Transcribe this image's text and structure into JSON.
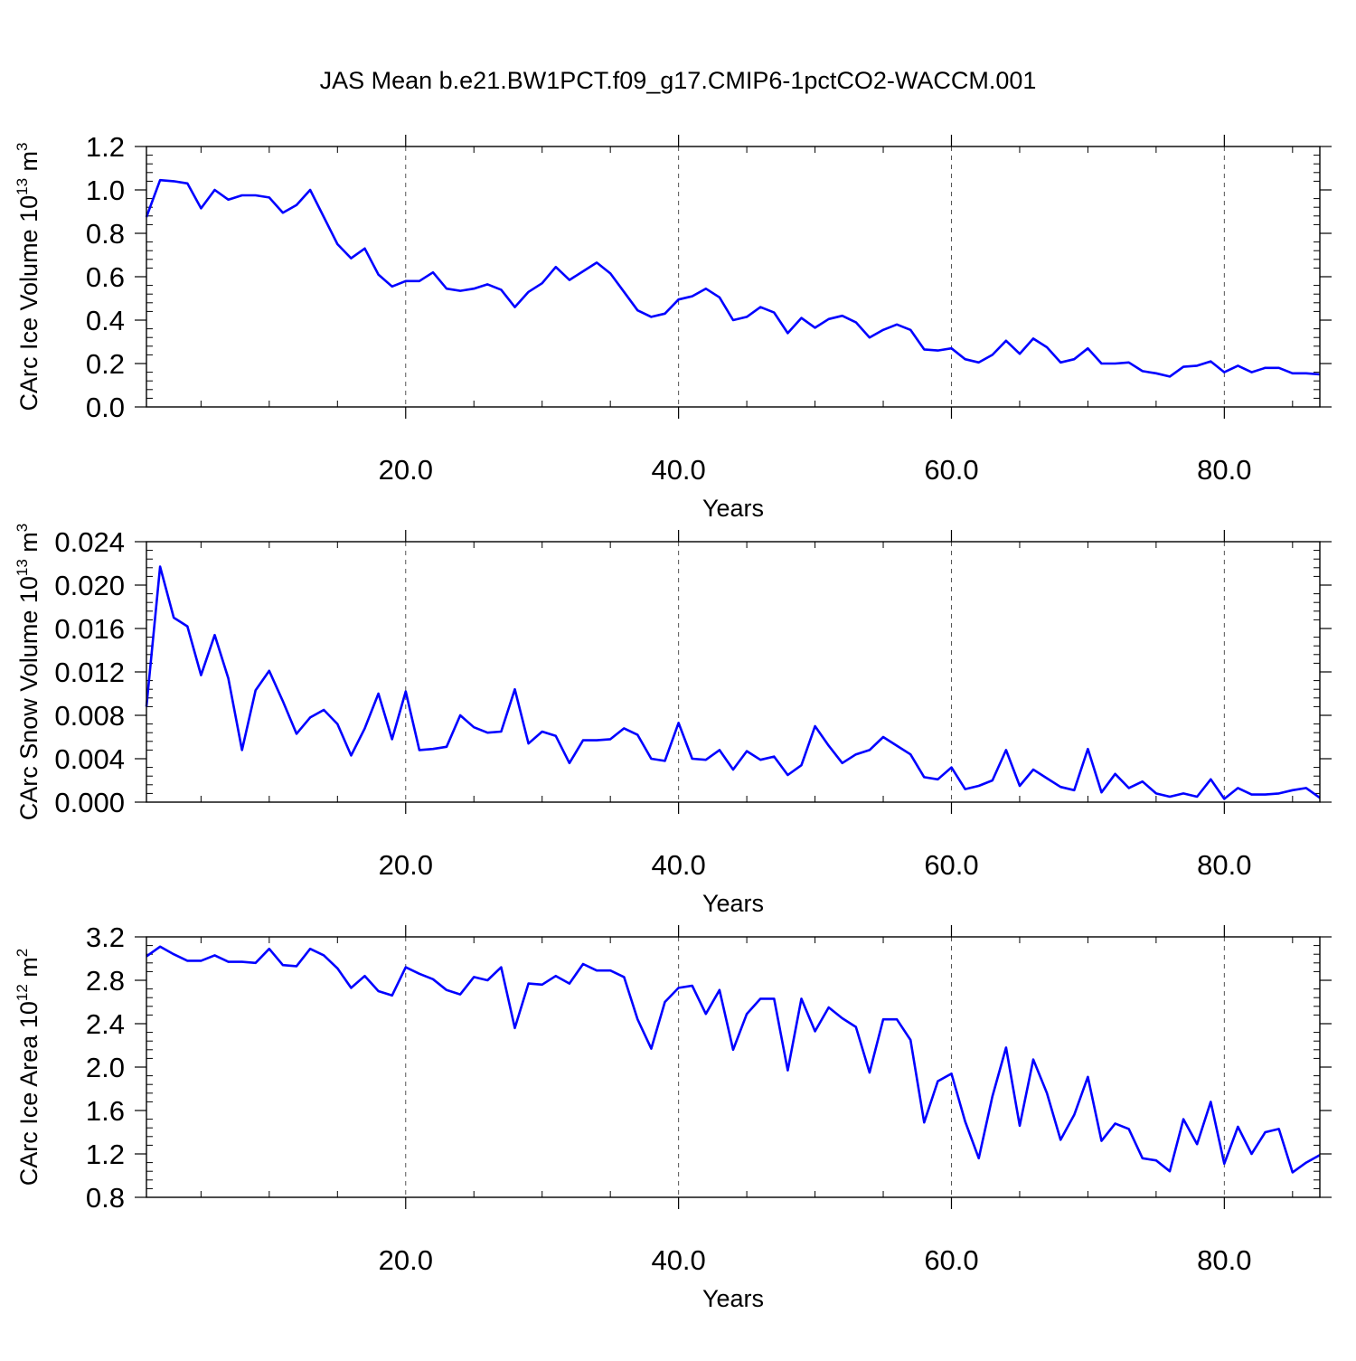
{
  "title": "JAS Mean b.e21.BW1PCT.f09_g17.CMIP6-1pctCO2-WACCM.001",
  "line_color": "#0000ff",
  "chart_data": [
    {
      "type": "line",
      "ylabel_main": "CArc Ice Volume 10",
      "ylabel_exp": "13",
      "ylabel_unit": " m",
      "ylabel_unit_exp": "3",
      "xlabel": "Years",
      "xlim": [
        1,
        87
      ],
      "ylim": [
        0.0,
        1.2
      ],
      "xticks": [
        20,
        40,
        60,
        80
      ],
      "xtick_labels": [
        "20.0",
        "40.0",
        "60.0",
        "80.0"
      ],
      "yticks": [
        0.0,
        0.2,
        0.4,
        0.6,
        0.8,
        1.0,
        1.2
      ],
      "ytick_labels": [
        "0.0",
        "0.2",
        "0.4",
        "0.6",
        "0.8",
        "1.0",
        "1.2"
      ],
      "grid": "dashed vertical at x ticks",
      "x": [
        1,
        2,
        3,
        4,
        5,
        6,
        7,
        8,
        9,
        10,
        11,
        12,
        13,
        14,
        15,
        16,
        17,
        18,
        19,
        20,
        21,
        22,
        23,
        24,
        25,
        26,
        27,
        28,
        29,
        30,
        31,
        32,
        33,
        34,
        35,
        36,
        37,
        38,
        39,
        40,
        41,
        42,
        43,
        44,
        45,
        46,
        47,
        48,
        49,
        50,
        51,
        52,
        53,
        54,
        55,
        56,
        57,
        58,
        59,
        60,
        61,
        62,
        63,
        64,
        65,
        66,
        67,
        68,
        69,
        70,
        71,
        72,
        73,
        74,
        75,
        76,
        77,
        78,
        79,
        80,
        81,
        82,
        83,
        84,
        85,
        86,
        87
      ],
      "values": [
        0.875,
        1.045,
        1.04,
        1.03,
        0.915,
        1.0,
        0.955,
        0.975,
        0.975,
        0.965,
        0.895,
        0.93,
        1.0,
        0.875,
        0.75,
        0.685,
        0.73,
        0.61,
        0.555,
        0.58,
        0.58,
        0.62,
        0.545,
        0.535,
        0.545,
        0.565,
        0.54,
        0.46,
        0.53,
        0.57,
        0.645,
        0.585,
        0.625,
        0.665,
        0.615,
        0.53,
        0.445,
        0.415,
        0.43,
        0.495,
        0.51,
        0.545,
        0.505,
        0.4,
        0.415,
        0.46,
        0.435,
        0.34,
        0.41,
        0.365,
        0.405,
        0.42,
        0.39,
        0.32,
        0.355,
        0.38,
        0.355,
        0.265,
        0.26,
        0.27,
        0.22,
        0.205,
        0.24,
        0.305,
        0.245,
        0.315,
        0.275,
        0.205,
        0.22,
        0.27,
        0.2,
        0.2,
        0.205,
        0.165,
        0.155,
        0.14,
        0.185,
        0.19,
        0.21,
        0.16,
        0.19,
        0.16,
        0.18,
        0.18,
        0.155,
        0.155,
        0.15
      ]
    },
    {
      "type": "line",
      "ylabel_main": "CArc Snow Volume 10",
      "ylabel_exp": "13",
      "ylabel_unit": " m",
      "ylabel_unit_exp": "3",
      "xlabel": "Years",
      "xlim": [
        1,
        87
      ],
      "ylim": [
        0.0,
        0.024
      ],
      "xticks": [
        20,
        40,
        60,
        80
      ],
      "xtick_labels": [
        "20.0",
        "40.0",
        "60.0",
        "80.0"
      ],
      "yticks": [
        0.0,
        0.004,
        0.008,
        0.012,
        0.016,
        0.02,
        0.024
      ],
      "ytick_labels": [
        "0.000",
        "0.004",
        "0.008",
        "0.012",
        "0.016",
        "0.020",
        "0.024"
      ],
      "grid": "dashed vertical at x ticks",
      "x": [
        1,
        2,
        3,
        4,
        5,
        6,
        7,
        8,
        9,
        10,
        11,
        12,
        13,
        14,
        15,
        16,
        17,
        18,
        19,
        20,
        21,
        22,
        23,
        24,
        25,
        26,
        27,
        28,
        29,
        30,
        31,
        32,
        33,
        34,
        35,
        36,
        37,
        38,
        39,
        40,
        41,
        42,
        43,
        44,
        45,
        46,
        47,
        48,
        49,
        50,
        51,
        52,
        53,
        54,
        55,
        56,
        57,
        58,
        59,
        60,
        61,
        62,
        63,
        64,
        65,
        66,
        67,
        68,
        69,
        70,
        71,
        72,
        73,
        74,
        75,
        76,
        77,
        78,
        79,
        80,
        81,
        82,
        83,
        84,
        85,
        86,
        87
      ],
      "values": [
        0.0088,
        0.0217,
        0.017,
        0.0162,
        0.0117,
        0.0154,
        0.0114,
        0.0048,
        0.0103,
        0.0121,
        0.0093,
        0.0063,
        0.0078,
        0.0085,
        0.0072,
        0.0043,
        0.0068,
        0.01,
        0.0058,
        0.0102,
        0.0048,
        0.0049,
        0.0051,
        0.008,
        0.0069,
        0.0064,
        0.0065,
        0.0104,
        0.0054,
        0.0065,
        0.0061,
        0.0036,
        0.0057,
        0.0057,
        0.0058,
        0.0068,
        0.0062,
        0.004,
        0.0038,
        0.0073,
        0.004,
        0.0039,
        0.0048,
        0.003,
        0.0047,
        0.0039,
        0.0042,
        0.0025,
        0.0034,
        0.007,
        0.0052,
        0.0036,
        0.0044,
        0.0048,
        0.006,
        0.0052,
        0.0044,
        0.0023,
        0.0021,
        0.0032,
        0.0012,
        0.0015,
        0.002,
        0.0048,
        0.0015,
        0.003,
        0.0022,
        0.0014,
        0.0011,
        0.0049,
        0.0009,
        0.0026,
        0.0013,
        0.0019,
        0.0008,
        0.0005,
        0.0008,
        0.0005,
        0.0021,
        0.0003,
        0.0013,
        0.0007,
        0.0007,
        0.0008,
        0.0011,
        0.0013,
        0.0004
      ]
    },
    {
      "type": "line",
      "ylabel_main": "CArc Ice Area 10",
      "ylabel_exp": "12",
      "ylabel_unit": " m",
      "ylabel_unit_exp": "2",
      "xlabel": "Years",
      "xlim": [
        1,
        87
      ],
      "ylim": [
        0.8,
        3.2
      ],
      "xticks": [
        20,
        40,
        60,
        80
      ],
      "xtick_labels": [
        "20.0",
        "40.0",
        "60.0",
        "80.0"
      ],
      "yticks": [
        0.8,
        1.2,
        1.6,
        2.0,
        2.4,
        2.8,
        3.2
      ],
      "ytick_labels": [
        "0.8",
        "1.2",
        "1.6",
        "2.0",
        "2.4",
        "2.8",
        "3.2"
      ],
      "grid": "dashed vertical at x ticks",
      "x": [
        1,
        2,
        3,
        4,
        5,
        6,
        7,
        8,
        9,
        10,
        11,
        12,
        13,
        14,
        15,
        16,
        17,
        18,
        19,
        20,
        21,
        22,
        23,
        24,
        25,
        26,
        27,
        28,
        29,
        30,
        31,
        32,
        33,
        34,
        35,
        36,
        37,
        38,
        39,
        40,
        41,
        42,
        43,
        44,
        45,
        46,
        47,
        48,
        49,
        50,
        51,
        52,
        53,
        54,
        55,
        56,
        57,
        58,
        59,
        60,
        61,
        62,
        63,
        64,
        65,
        66,
        67,
        68,
        69,
        70,
        71,
        72,
        73,
        74,
        75,
        76,
        77,
        78,
        79,
        80,
        81,
        82,
        83,
        84,
        85,
        86,
        87
      ],
      "values": [
        3.02,
        3.11,
        3.04,
        2.98,
        2.98,
        3.03,
        2.97,
        2.97,
        2.96,
        3.09,
        2.94,
        2.93,
        3.09,
        3.03,
        2.91,
        2.73,
        2.84,
        2.7,
        2.66,
        2.92,
        2.86,
        2.81,
        2.71,
        2.67,
        2.83,
        2.8,
        2.92,
        2.36,
        2.77,
        2.76,
        2.84,
        2.77,
        2.95,
        2.89,
        2.89,
        2.83,
        2.44,
        2.17,
        2.6,
        2.73,
        2.75,
        2.49,
        2.71,
        2.16,
        2.49,
        2.63,
        2.63,
        1.97,
        2.63,
        2.33,
        2.55,
        2.45,
        2.37,
        1.95,
        2.44,
        2.44,
        2.25,
        1.49,
        1.87,
        1.94,
        1.5,
        1.16,
        1.73,
        2.18,
        1.46,
        2.07,
        1.76,
        1.33,
        1.56,
        1.91,
        1.32,
        1.48,
        1.43,
        1.16,
        1.14,
        1.04,
        1.52,
        1.29,
        1.68,
        1.11,
        1.45,
        1.2,
        1.4,
        1.43,
        1.03,
        1.12,
        1.19
      ]
    }
  ]
}
